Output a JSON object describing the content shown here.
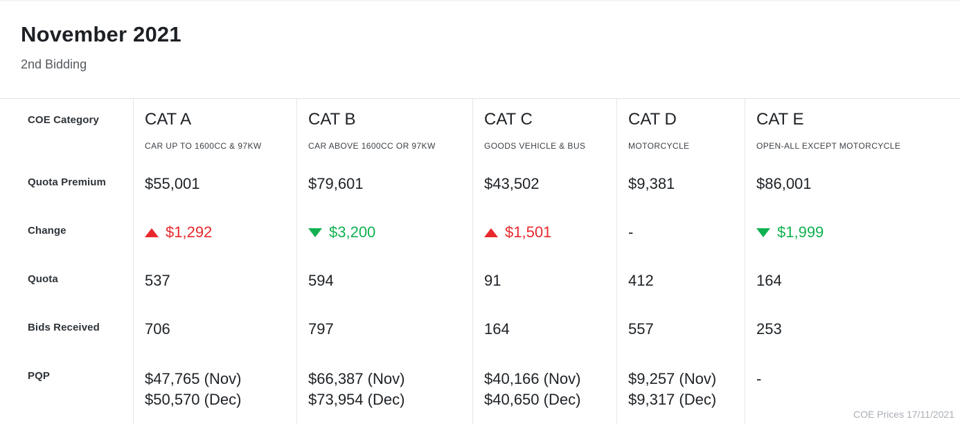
{
  "header": {
    "title": "November 2021",
    "subtitle": "2nd Bidding"
  },
  "labels": {
    "category": "COE Category",
    "quota_premium": "Quota Premium",
    "change": "Change",
    "quota": "Quota",
    "bids_received": "Bids Received",
    "pqp": "PQP"
  },
  "columns": [
    {
      "name": "CAT A",
      "description": "CAR UP TO 1600CC & 97KW",
      "quota_premium": "$55,001",
      "change": {
        "direction": "up",
        "value": "$1,292"
      },
      "quota": "537",
      "bids_received": "706",
      "pqp": [
        "$47,765 (Nov)",
        "$50,570 (Dec)"
      ]
    },
    {
      "name": "CAT B",
      "description": "CAR ABOVE 1600CC OR 97KW",
      "quota_premium": "$79,601",
      "change": {
        "direction": "down",
        "value": "$3,200"
      },
      "quota": "594",
      "bids_received": "797",
      "pqp": [
        "$66,387 (Nov)",
        "$73,954 (Dec)"
      ]
    },
    {
      "name": "CAT C",
      "description": "GOODS VEHICLE & BUS",
      "quota_premium": "$43,502",
      "change": {
        "direction": "up",
        "value": "$1,501"
      },
      "quota": "91",
      "bids_received": "164",
      "pqp": [
        "$40,166 (Nov)",
        "$40,650 (Dec)"
      ]
    },
    {
      "name": "CAT D",
      "description": "MOTORCYCLE",
      "quota_premium": "$9,381",
      "change": {
        "direction": "none",
        "value": "-"
      },
      "quota": "412",
      "bids_received": "557",
      "pqp": [
        "$9,257 (Nov)",
        "$9,317 (Dec)"
      ]
    },
    {
      "name": "CAT E",
      "description": "OPEN-ALL EXCEPT MOTORCYCLE",
      "quota_premium": "$86,001",
      "change": {
        "direction": "down",
        "value": "$1,999"
      },
      "quota": "164",
      "bids_received": "253",
      "pqp": [
        "-"
      ]
    }
  ],
  "footer": {
    "source": "COE Prices 17/11/2021"
  },
  "colors": {
    "up_red": "#e8282c",
    "down_green": "#10b150",
    "neutral": "#1d2125"
  }
}
